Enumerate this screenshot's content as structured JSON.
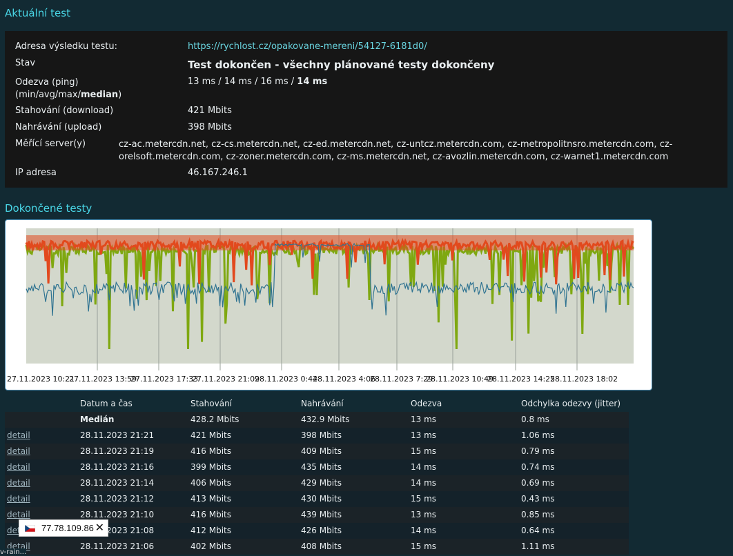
{
  "current_test": {
    "title": "Aktuální test",
    "rows": [
      {
        "label": "Adresa výsledku testu:",
        "value": "https://rychlost.cz/opakovane-mereni/54127-6181d0/"
      },
      {
        "label": "Stav",
        "value": "Test dokončen - všechny plánované testy dokončeny"
      },
      {
        "label": "Odezva (ping)",
        "label2a": "(min/avg/max/",
        "label2b": "median",
        "label2c": ")",
        "value": "13 ms / 14 ms / 16 ms / ",
        "value_bold": "14 ms"
      },
      {
        "label": "Stahování (download)",
        "value": "421 Mbits"
      },
      {
        "label": "Nahrávání (upload)",
        "value": "398 Mbits"
      },
      {
        "label": "Měřící server(y)",
        "value": "cz-ac.metercdn.net, cz-cs.metercdn.net, cz-ed.metercdn.net, cz-untcz.metercdn.com, cz-metropolitnsro.metercdn.com, cz-orelsoft.metercdn.com, cz-zoner.metercdn.com, cz-ms.metercdn.net, cz-avozlin.metercdn.com, cz-warnet1.metercdn.com"
      },
      {
        "label": "IP adresa",
        "value": "46.167.246.1"
      }
    ]
  },
  "completed_tests": {
    "title": "Dokončené testy",
    "columns": [
      "",
      "Datum a čas",
      "Stahování",
      "Nahrávání",
      "Odezva",
      "Odchylka odezvy (jitter)"
    ],
    "median": {
      "label": "Medián",
      "download": "428.2 Mbits",
      "upload": "432.9 Mbits",
      "ping": "13 ms",
      "jitter": "0.8 ms"
    },
    "rows": [
      {
        "link": "detail",
        "time": "28.11.2023 21:21",
        "download": "421 Mbits",
        "upload": "398 Mbits",
        "ping": "13 ms",
        "jitter": "1.06 ms"
      },
      {
        "link": "detail",
        "time": "28.11.2023 21:19",
        "download": "416 Mbits",
        "upload": "409 Mbits",
        "ping": "15 ms",
        "jitter": "0.79 ms"
      },
      {
        "link": "detail",
        "time": "28.11.2023 21:16",
        "download": "399 Mbits",
        "upload": "435 Mbits",
        "ping": "14 ms",
        "jitter": "0.74 ms"
      },
      {
        "link": "detail",
        "time": "28.11.2023 21:14",
        "download": "406 Mbits",
        "upload": "429 Mbits",
        "ping": "14 ms",
        "jitter": "0.69 ms"
      },
      {
        "link": "detail",
        "time": "28.11.2023 21:12",
        "download": "413 Mbits",
        "upload": "430 Mbits",
        "ping": "15 ms",
        "jitter": "0.43 ms"
      },
      {
        "link": "detail",
        "time": "28.11.2023 21:10",
        "download": "416 Mbits",
        "upload": "439 Mbits",
        "ping": "13 ms",
        "jitter": "0.85 ms"
      },
      {
        "link": "detail",
        "time": "28.11.2023 21:08",
        "download": "412 Mbits",
        "upload": "426 Mbits",
        "ping": "14 ms",
        "jitter": "0.64 ms"
      },
      {
        "link": "detail",
        "time": "28.11.2023 21:06",
        "download": "402 Mbits",
        "upload": "408 Mbits",
        "ping": "15 ms",
        "jitter": "1.11 ms"
      }
    ]
  },
  "chart_data": {
    "type": "line",
    "x_tick_labels": [
      "27.11.2023 10:21",
      "27.11.2023 13:59",
      "27.11.2023 17:33",
      "27.11.2023 21:09",
      "28.11.2023 0:44",
      "28.11.2023 4:06",
      "28.11.2023 7:29",
      "28.11.2023 10:49",
      "28.11.2023 14:25",
      "28.11.2023 18:02"
    ],
    "series_colors": {
      "download": "#7fa811",
      "upload": "#e2491e",
      "ping": "#2f7391"
    },
    "background_color": "#d3d8cc"
  },
  "ip_popup": {
    "ip": "77.78.109.86",
    "close": "✕"
  },
  "status_bar": {
    "text": "v-rain..."
  }
}
